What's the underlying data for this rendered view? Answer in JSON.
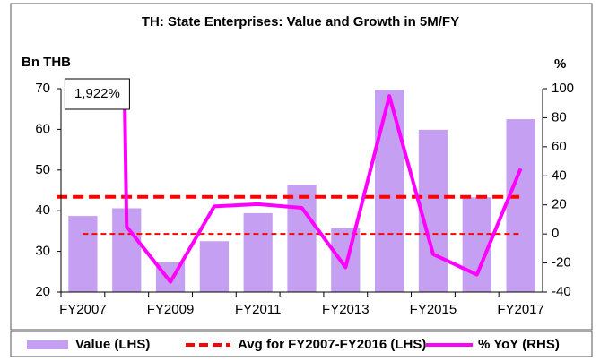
{
  "chart_data": {
    "type": "bar",
    "title": "TH: State Enterprises: Value and Growth in 5M/FY",
    "y_label": "Bn THB",
    "y2_label": "%",
    "categories": [
      "FY2007",
      null,
      "FY2009",
      null,
      "FY2011",
      null,
      "FY2013",
      null,
      "FY2015",
      null,
      "FY2017"
    ],
    "ylim": [
      20,
      70
    ],
    "yticks": [
      20,
      30,
      40,
      50,
      60,
      70
    ],
    "y2lim": [
      -40,
      100
    ],
    "y2ticks": [
      -40,
      -20,
      0,
      20,
      40,
      60,
      80,
      100
    ],
    "y2_refline": 0,
    "y2_refline_color": "#ff0000",
    "series": [
      {
        "name": "Value (LHS)",
        "type": "bar",
        "color": "#c59ff2",
        "values": [
          38.7,
          40.6,
          27.3,
          32.5,
          39.4,
          46.4,
          35.7,
          69.7,
          59.9,
          43.3,
          62.5
        ]
      },
      {
        "name": "Avg for FY2007-FY2016 (LHS)",
        "type": "dashed-line",
        "color": "#ff0000",
        "values": [
          43.4,
          43.4,
          43.4,
          43.4,
          43.4,
          43.4,
          43.4,
          43.4,
          43.4,
          43.4,
          43.4
        ]
      },
      {
        "name": "% YoY (RHS)",
        "type": "line",
        "axis": "y2",
        "color": "#ff00ff",
        "values": [
          1922,
          5,
          -33,
          19,
          20.5,
          18,
          -23,
          95,
          -14,
          -28,
          45
        ],
        "value_labels": [
          "1,922%",
          null,
          null,
          null,
          null,
          null,
          null,
          null,
          null,
          null,
          null
        ]
      }
    ],
    "legend": "bottom"
  }
}
